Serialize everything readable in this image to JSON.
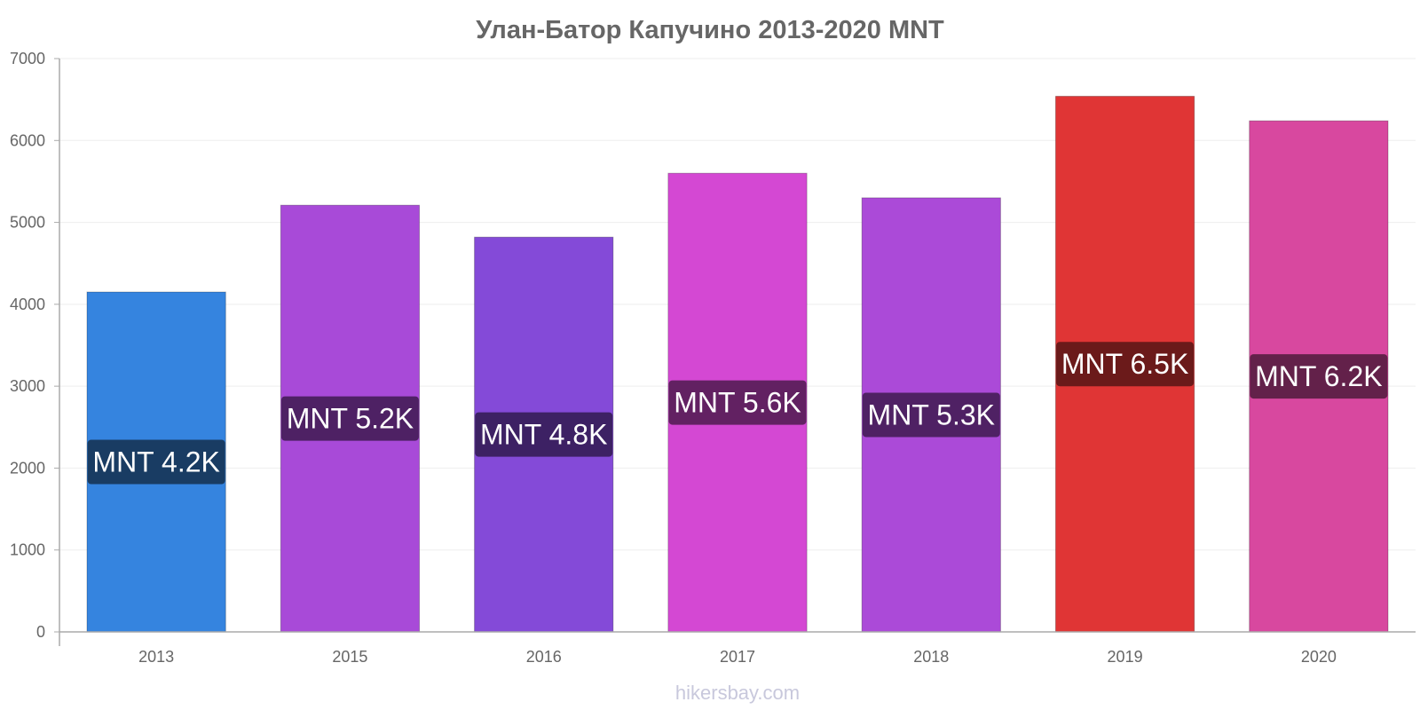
{
  "chart_data": {
    "type": "bar",
    "title": "Улан-Батор Капучино 2013-2020 MNT",
    "categories": [
      "2013",
      "2015",
      "2016",
      "2017",
      "2018",
      "2019",
      "2020"
    ],
    "values": [
      4150,
      5210,
      4820,
      5600,
      5300,
      6540,
      6240
    ],
    "value_labels": [
      "MNT 4.2K",
      "MNT 5.2K",
      "MNT 4.8K",
      "MNT 5.6K",
      "MNT 5.3K",
      "MNT 6.5K",
      "MNT 6.2K"
    ],
    "bar_colors": [
      "#3584df",
      "#a84ad8",
      "#844ad8",
      "#d448d3",
      "#ab4ad8",
      "#e03535",
      "#d8489f"
    ],
    "label_bg_colors": [
      "#193c63",
      "#4e2164",
      "#3d2164",
      "#622162",
      "#4f2164",
      "#6b1a1a",
      "#63214a"
    ],
    "ylim": [
      0,
      7000
    ],
    "yticks": [
      0,
      1000,
      2000,
      3000,
      4000,
      5000,
      6000,
      7000
    ],
    "ytick_labels": [
      "0",
      "1000",
      "2000",
      "3000",
      "4000",
      "5000",
      "6000",
      "7000"
    ],
    "grid": true,
    "xlabel": "",
    "ylabel": ""
  },
  "watermark": "hikersbay.com"
}
